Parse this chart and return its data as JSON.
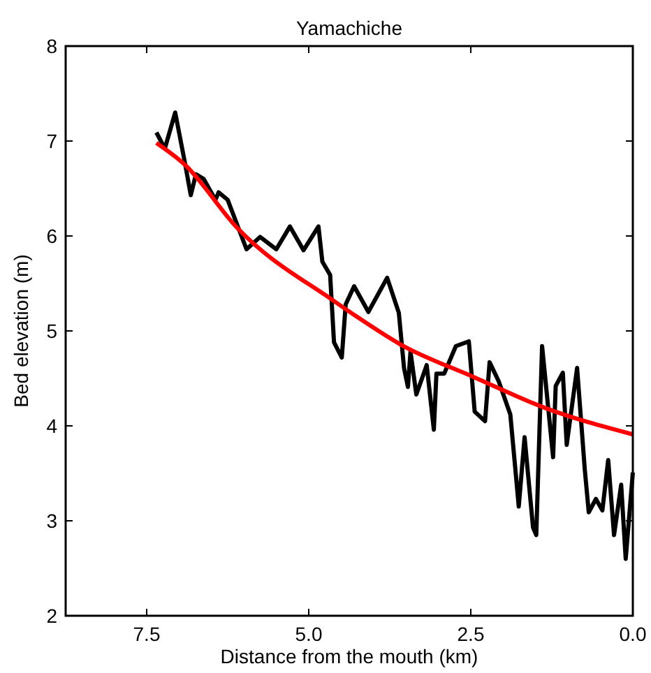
{
  "chart_data": {
    "type": "line",
    "title": "Yamachiche",
    "xlabel": "Distance from the mouth (km)",
    "ylabel": "Bed elevation (m)",
    "xlim": [
      8.75,
      0
    ],
    "xticks": [
      {
        "value": 7.5,
        "label": "7.5"
      },
      {
        "value": 5,
        "label": "5.0"
      },
      {
        "value": 2.5,
        "label": "2.5"
      },
      {
        "value": 0,
        "label": "0.0"
      }
    ],
    "ylim": [
      2,
      8
    ],
    "yticks": [
      2,
      3,
      4,
      5,
      6,
      7,
      8
    ],
    "grid": false,
    "line_style": "solid",
    "series": [
      {
        "color": "#000000",
        "x": [
          7.35,
          7.22,
          7.06,
          6.91,
          6.82,
          6.74,
          6.62,
          6.44,
          6.39,
          6.25,
          5.96,
          5.75,
          5.5,
          5.29,
          5.08,
          4.85,
          4.79,
          4.67,
          4.61,
          4.49,
          4.43,
          4.3,
          4.08,
          3.79,
          3.61,
          3.53,
          3.47,
          3.43,
          3.34,
          3.18,
          3.07,
          3.03,
          2.91,
          2.73,
          2.53,
          2.44,
          2.28,
          2.21,
          2.07,
          1.89,
          1.76,
          1.67,
          1.54,
          1.49,
          1.4,
          1.23,
          1.19,
          1.08,
          1.02,
          0.86,
          0.74,
          0.68,
          0.57,
          0.47,
          0.38,
          0.29,
          0.18,
          0.11,
          0.0
        ],
        "values": [
          7.09,
          6.92,
          7.3,
          6.77,
          6.43,
          6.65,
          6.6,
          6.38,
          6.46,
          6.38,
          5.86,
          5.99,
          5.86,
          6.1,
          5.85,
          6.1,
          5.73,
          5.59,
          4.88,
          4.72,
          5.28,
          5.47,
          5.2,
          5.56,
          5.19,
          4.61,
          4.41,
          4.78,
          4.33,
          4.64,
          3.96,
          4.55,
          4.55,
          4.84,
          4.89,
          4.15,
          4.05,
          4.67,
          4.47,
          4.12,
          3.15,
          3.88,
          2.93,
          2.85,
          4.84,
          3.67,
          4.42,
          4.56,
          3.8,
          4.61,
          3.53,
          3.09,
          3.23,
          3.11,
          3.64,
          2.85,
          3.38,
          2.6,
          3.51
        ]
      },
      {
        "color": "#ff0000",
        "x": [
          7.35,
          6.91,
          6.11,
          4.6,
          4.17,
          3.59,
          2.44,
          1.36,
          0.0
        ],
        "values": [
          6.98,
          6.75,
          6.09,
          5.31,
          5.11,
          4.86,
          4.51,
          4.19,
          3.91
        ]
      }
    ]
  }
}
